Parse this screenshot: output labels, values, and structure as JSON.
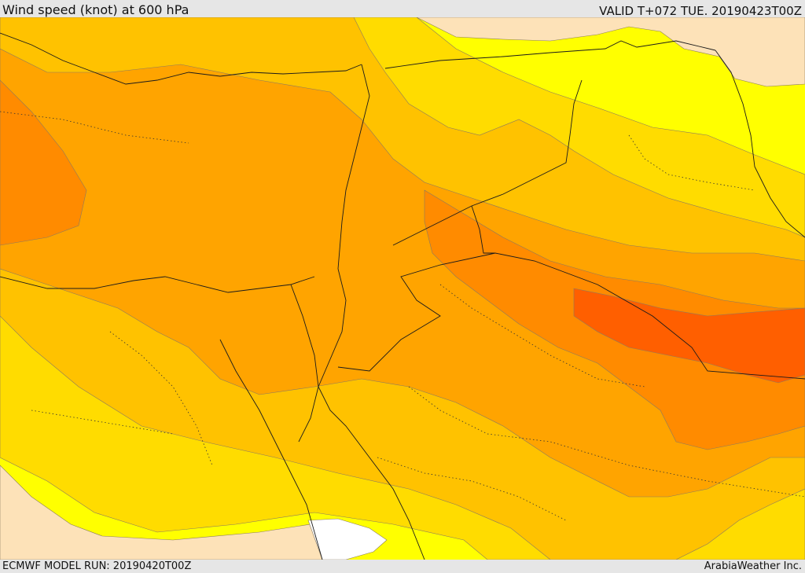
{
  "header": {
    "title": "Wind speed (knot) at 600 hPa",
    "valid": "VALID T+072 TUE. 20190423T00Z"
  },
  "footer": {
    "model_run": "ECMWF MODEL RUN: 20190420T00Z",
    "credit": "ArabiaWeather Inc."
  },
  "map": {
    "colors": {
      "lightest": "#fde2b8",
      "yellow": "#ffff00",
      "gold": "#ffdc00",
      "amber": "#ffc200",
      "orange": "#ffa400",
      "dark_orange": "#ff8b00",
      "red_orange": "#ff5f00",
      "calm": "#ffffff"
    }
  }
}
